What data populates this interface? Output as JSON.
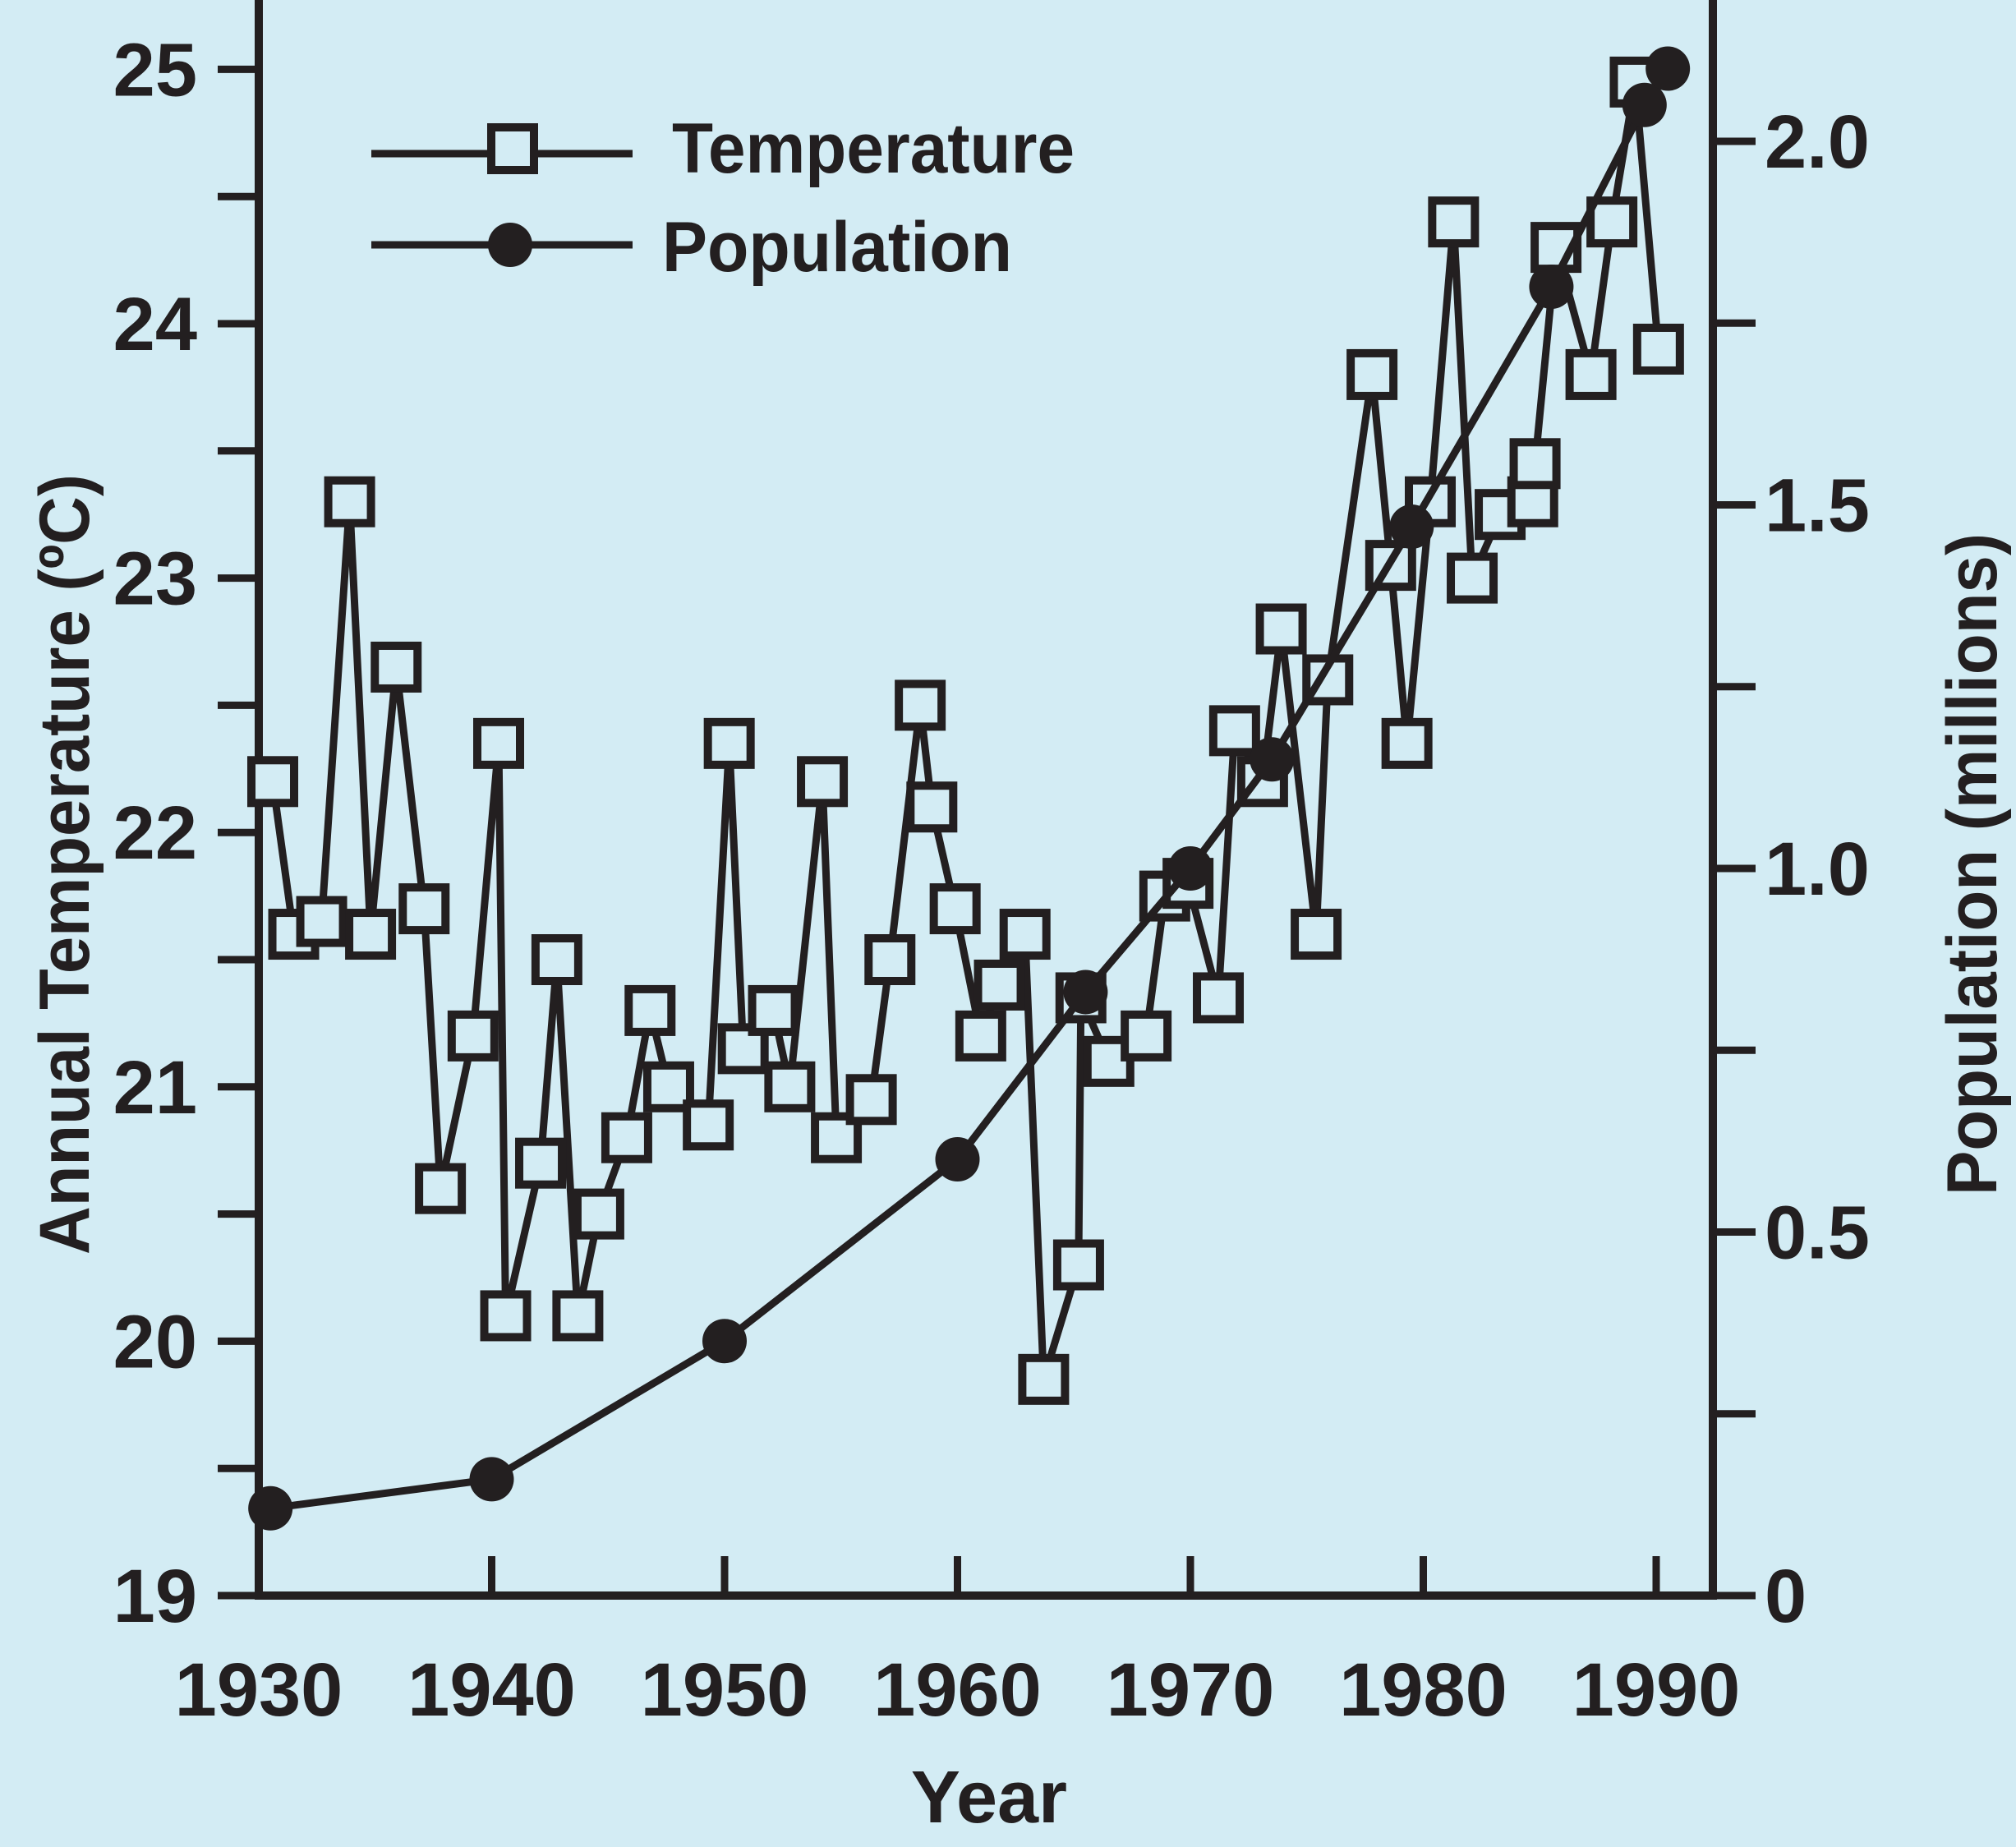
{
  "colors": {
    "background": "#d3ecf4",
    "ink": "#231f20"
  },
  "chart_data": {
    "type": "line",
    "title": "",
    "xlabel": "Year",
    "ylabel_left": "Annual Temperature (ºC)",
    "ylabel_right": "Population (millions)",
    "xlim": [
      1930,
      1992
    ],
    "ylim_left": [
      19,
      25.3
    ],
    "ylim_right": [
      0,
      2.25
    ],
    "grid": false,
    "legend_position": "top-left",
    "x_ticks": [
      1930,
      1940,
      1950,
      1960,
      1970,
      1980,
      1990
    ],
    "x_tick_labels": [
      "1930",
      "1940",
      "1950",
      "1960",
      "1970",
      "1980",
      "1990"
    ],
    "y_left_ticks": [
      19,
      19.5,
      20,
      20.5,
      21,
      21.5,
      22,
      22.5,
      23,
      23.5,
      24,
      24.5,
      25
    ],
    "y_left_tick_labels": [
      "19",
      "",
      "20",
      "",
      "21",
      "",
      "22",
      "",
      "23",
      "",
      "24",
      "",
      "25"
    ],
    "y_right_ticks": [
      0,
      0.25,
      0.5,
      0.75,
      1.0,
      1.25,
      1.5,
      1.75,
      2.0
    ],
    "y_right_tick_labels": [
      "0",
      "",
      "0.5",
      "",
      "1.0",
      "",
      "1.5",
      "",
      "2.0"
    ],
    "series": [
      {
        "name": "Temperature",
        "axis": "left",
        "marker": "open-square",
        "x": [
          1930.6,
          1931.5,
          1932.7,
          1933.9,
          1934.8,
          1935.9,
          1937.1,
          1937.8,
          1939.2,
          1940.3,
          1940.6,
          1942.1,
          1942.8,
          1943.7,
          1944.6,
          1945.8,
          1946.8,
          1947.6,
          1949.3,
          1950.2,
          1950.8,
          1952.1,
          1952.8,
          1954.2,
          1954.8,
          1956.3,
          1957.1,
          1958.4,
          1958.9,
          1959.9,
          1961.0,
          1961.8,
          1962.9,
          1963.7,
          1965.2,
          1965.3,
          1966.5,
          1968.1,
          1968.9,
          1969.9,
          1971.2,
          1971.9,
          1973.1,
          1973.9,
          1975.4,
          1975.9,
          1977.8,
          1978.6,
          1979.3,
          1980.3,
          1981.3,
          1982.1,
          1983.3,
          1984.7,
          1984.8,
          1985.7,
          1987.2,
          1988.1,
          1989.1,
          1990.1
        ],
        "values": [
          22.2,
          21.6,
          21.65,
          23.3,
          21.6,
          22.65,
          21.7,
          20.6,
          21.2,
          22.35,
          20.1,
          20.7,
          21.5,
          20.1,
          20.5,
          20.8,
          21.3,
          21.0,
          20.85,
          22.35,
          21.15,
          21.3,
          21.0,
          22.2,
          20.8,
          20.95,
          21.5,
          22.5,
          22.1,
          21.7,
          21.2,
          21.4,
          21.6,
          19.85,
          20.3,
          21.35,
          21.1,
          21.2,
          21.75,
          21.8,
          21.35,
          22.4,
          22.2,
          22.8,
          21.6,
          22.6,
          23.8,
          23.05,
          22.35,
          23.3,
          24.4,
          23.0,
          23.25,
          23.3,
          23.45,
          24.3,
          23.8,
          24.4,
          24.95,
          23.9
        ]
      },
      {
        "name": "Population",
        "axis": "right",
        "marker": "filled-circle",
        "x": [
          1930.5,
          1940.0,
          1950.0,
          1960.0,
          1965.5,
          1970.0,
          1973.5,
          1979.5,
          1985.5,
          1989.5,
          1990.5
        ],
        "values": [
          0.12,
          0.16,
          0.35,
          0.6,
          0.83,
          1.0,
          1.15,
          1.47,
          1.8,
          2.05,
          2.1
        ]
      }
    ]
  }
}
